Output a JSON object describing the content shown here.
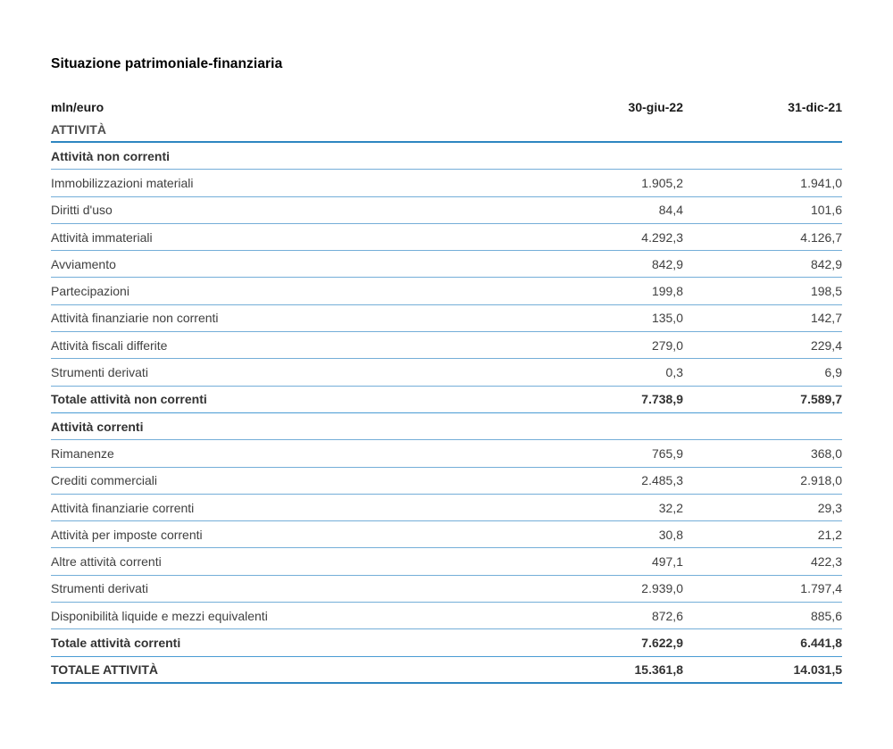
{
  "title": "Situazione patrimoniale-finanziaria",
  "colors": {
    "line_light": "#74aed8",
    "line_strong": "#2e86c1",
    "text_main": "#404040"
  },
  "table": {
    "unit_label": "mln/euro",
    "columns": [
      "30-giu-22",
      "31-dic-21"
    ],
    "section_label": "ATTIVITÀ",
    "rows": [
      {
        "label": "Attività non correnti",
        "v1": "",
        "v2": "",
        "style": "subheader"
      },
      {
        "label": "Immobilizzazioni materiali",
        "v1": "1.905,2",
        "v2": "1.941,0",
        "style": "normal"
      },
      {
        "label": "Diritti d'uso",
        "v1": "84,4",
        "v2": "101,6",
        "style": "normal"
      },
      {
        "label": "Attività immateriali",
        "v1": "4.292,3",
        "v2": "4.126,7",
        "style": "normal"
      },
      {
        "label": "Avviamento",
        "v1": "842,9",
        "v2": "842,9",
        "style": "normal"
      },
      {
        "label": "Partecipazioni",
        "v1": "199,8",
        "v2": "198,5",
        "style": "normal"
      },
      {
        "label": "Attività finanziarie non correnti",
        "v1": "135,0",
        "v2": "142,7",
        "style": "normal"
      },
      {
        "label": "Attività fiscali differite",
        "v1": "279,0",
        "v2": "229,4",
        "style": "normal"
      },
      {
        "label": "Strumenti derivati",
        "v1": "0,3",
        "v2": "6,9",
        "style": "normal"
      },
      {
        "label": "Totale attività non correnti",
        "v1": "7.738,9",
        "v2": "7.589,7",
        "style": "total"
      },
      {
        "label": "Attività correnti",
        "v1": "",
        "v2": "",
        "style": "subheader"
      },
      {
        "label": "Rimanenze",
        "v1": "765,9",
        "v2": "368,0",
        "style": "normal"
      },
      {
        "label": "Crediti commerciali",
        "v1": "2.485,3",
        "v2": "2.918,0",
        "style": "normal"
      },
      {
        "label": "Attività finanziarie correnti",
        "v1": "32,2",
        "v2": "29,3",
        "style": "normal"
      },
      {
        "label": "Attività per imposte correnti",
        "v1": "30,8",
        "v2": "21,2",
        "style": "normal"
      },
      {
        "label": "Altre attività correnti",
        "v1": "497,1",
        "v2": "422,3",
        "style": "normal"
      },
      {
        "label": "Strumenti derivati",
        "v1": "2.939,0",
        "v2": "1.797,4",
        "style": "normal"
      },
      {
        "label": "Disponibilità liquide e mezzi equivalenti",
        "v1": "872,6",
        "v2": "885,6",
        "style": "normal"
      },
      {
        "label": "Totale attività correnti",
        "v1": "7.622,9",
        "v2": "6.441,8",
        "style": "total"
      },
      {
        "label": "TOTALE ATTIVITÀ",
        "v1": "15.361,8",
        "v2": "14.031,5",
        "style": "grand-total"
      }
    ]
  }
}
